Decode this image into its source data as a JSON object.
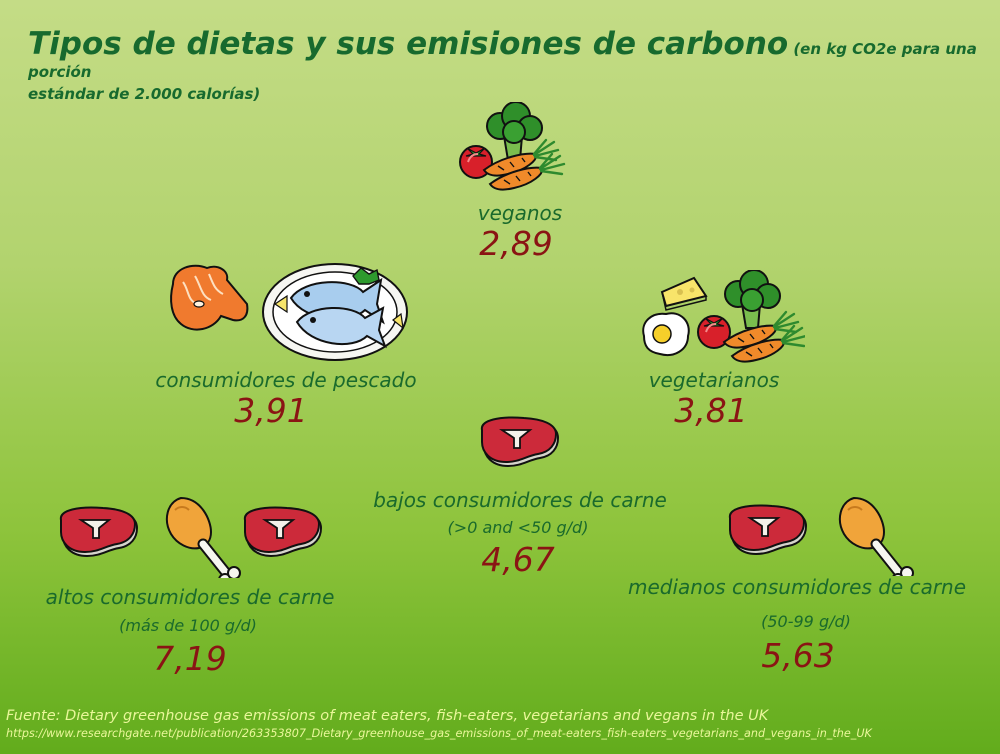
{
  "title": {
    "main": "Tipos de dietas y sus emisiones de carbono",
    "subtitle_part1": "(en kg CO2e para una porción",
    "subtitle_part2": "estándar de 2.000 calorías)"
  },
  "diets": {
    "veganos": {
      "label": "veganos",
      "value": "2,89",
      "icon": "vegetables-icon"
    },
    "pescado": {
      "label": "consumidores de pescado",
      "value": "3,91",
      "icon": "fish-plate-icon"
    },
    "vegetarianos": {
      "label": "vegetarianos",
      "value": "3,81",
      "icon": "egg-cheese-vegetables-icon"
    },
    "bajos": {
      "label": "bajos consumidores de carne",
      "sublabel": "(>0 and <50 g/d)",
      "value": "4,67",
      "icon": "steak-icon"
    },
    "altos": {
      "label": "altos consumidores de carne",
      "sublabel": "(más de 100 g/d)",
      "value": "7,19",
      "icon": "steak-drumstick-steak-icon"
    },
    "medianos": {
      "label": "medianos consumidores de carne",
      "sublabel": "(50-99 g/d)",
      "value": "5,63",
      "icon": "steak-drumstick-icon"
    }
  },
  "source": {
    "text": "Fuente: Dietary greenhouse gas emissions of meat eaters, fish-eaters, vegetarians and vegans in the UK",
    "url": "https://www.researchgate.net/publication/263353807_Dietary_greenhouse_gas_emissions_of_meat-eaters_fish-eaters_vegetarians_and_vegans_in_the_UK"
  },
  "colors": {
    "title": "#176a2e",
    "label": "#1a6a2c",
    "value": "#8a1414",
    "source": "#eaf79a"
  }
}
